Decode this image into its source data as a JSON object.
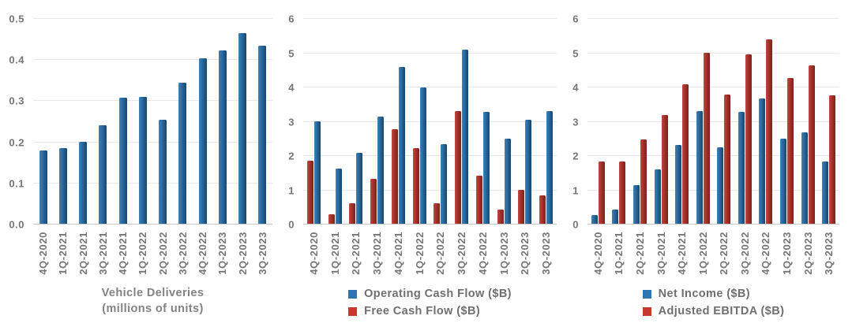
{
  "colors": {
    "background": "#ffffff",
    "bar_blue": "#2b6ca4",
    "bar_blue_light": "#3f82b5",
    "bar_blue_dark": "#17466b",
    "bar_red": "#ab332c",
    "bar_red_light": "#bf4a41",
    "bar_red_dark": "#78231f",
    "legend_blue": "#2e74b0",
    "legend_red": "#c7392f",
    "grid": "#e8e8e8",
    "axis_line": "#c6c6c6",
    "tick_label": "#757575",
    "title": "#828282",
    "legend_text": "#6f6f6f"
  },
  "categories": [
    "4Q-2020",
    "1Q-2021",
    "2Q-2021",
    "3Q-2021",
    "4Q-2021",
    "1Q-2022",
    "2Q-2022",
    "3Q-2022",
    "4Q-2022",
    "1Q-2023",
    "2Q-2023",
    "3Q-2023"
  ],
  "chart_data": [
    {
      "type": "bar",
      "title": "Vehicle Deliveries",
      "subtitle": "(millions of units)",
      "categories": [
        "4Q-2020",
        "1Q-2021",
        "2Q-2021",
        "3Q-2021",
        "4Q-2021",
        "1Q-2022",
        "2Q-2022",
        "3Q-2022",
        "4Q-2022",
        "1Q-2023",
        "2Q-2023",
        "3Q-2023"
      ],
      "series": [
        {
          "name": "Vehicle Deliveries (millions of units)",
          "color": "blue",
          "values": [
            0.18,
            0.185,
            0.201,
            0.241,
            0.309,
            0.31,
            0.255,
            0.344,
            0.405,
            0.423,
            0.466,
            0.435
          ]
        }
      ],
      "ylim": [
        0,
        0.5
      ],
      "yticks": [
        "0.0",
        "0.1",
        "0.2",
        "0.3",
        "0.4",
        "0.5"
      ],
      "grid": true,
      "legend": []
    },
    {
      "type": "bar",
      "title": "",
      "subtitle": "",
      "categories": [
        "4Q-2020",
        "1Q-2021",
        "2Q-2021",
        "3Q-2021",
        "4Q-2021",
        "1Q-2022",
        "2Q-2022",
        "3Q-2022",
        "4Q-2022",
        "1Q-2023",
        "2Q-2023",
        "3Q-2023"
      ],
      "series": [
        {
          "name": "Free Cash Flow ($B)",
          "color": "red",
          "values": [
            1.87,
            0.29,
            0.62,
            1.33,
            2.78,
            2.23,
            0.62,
            3.3,
            1.42,
            0.44,
            1.01,
            0.85
          ]
        },
        {
          "name": "Operating Cash Flow ($B)",
          "color": "blue",
          "values": [
            3.02,
            1.64,
            2.1,
            3.15,
            4.59,
            3.99,
            2.35,
            5.1,
            3.28,
            2.51,
            3.06,
            3.31
          ]
        }
      ],
      "ylim": [
        0,
        6
      ],
      "yticks": [
        "0",
        "1",
        "2",
        "3",
        "4",
        "5",
        "6"
      ],
      "grid": true,
      "legend_position": "below",
      "legend": [
        {
          "label": "Operating Cash Flow ($B)",
          "color": "blue"
        },
        {
          "label": "Free Cash Flow ($B)",
          "color": "red"
        }
      ]
    },
    {
      "type": "bar",
      "title": "",
      "subtitle": "",
      "categories": [
        "4Q-2020",
        "1Q-2021",
        "2Q-2021",
        "3Q-2021",
        "4Q-2021",
        "1Q-2022",
        "2Q-2022",
        "3Q-2022",
        "4Q-2022",
        "1Q-2023",
        "2Q-2023",
        "3Q-2023"
      ],
      "series": [
        {
          "name": "Net Income ($B)",
          "color": "blue",
          "values": [
            0.27,
            0.44,
            1.14,
            1.62,
            2.32,
            3.32,
            2.26,
            3.29,
            3.69,
            2.51,
            2.7,
            1.85
          ]
        },
        {
          "name": "Adjusted EBITDA ($B)",
          "color": "red",
          "values": [
            1.85,
            1.84,
            2.49,
            3.2,
            4.09,
            5.02,
            3.79,
            4.97,
            5.4,
            4.27,
            4.65,
            3.76
          ]
        }
      ],
      "ylim": [
        0,
        6
      ],
      "yticks": [
        "0",
        "1",
        "2",
        "3",
        "4",
        "5",
        "6"
      ],
      "grid": true,
      "legend_position": "below",
      "legend": [
        {
          "label": "Net Income ($B)",
          "color": "blue"
        },
        {
          "label": "Adjusted EBITDA ($B)",
          "color": "red"
        }
      ]
    }
  ]
}
